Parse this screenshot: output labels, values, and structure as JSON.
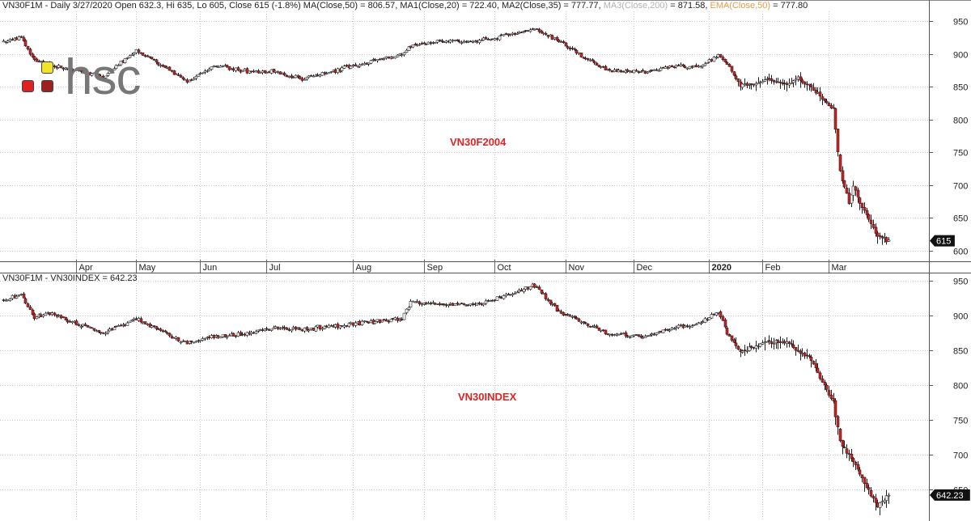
{
  "header_top": {
    "symbol": "VN30F1M",
    "info": "- Daily 3/27/2020 Open 632.3, Hi 635, Lo 605, Close 615 (-1.8%)",
    "ma": "MA(Close,50) = 806.57,",
    "ma1": "MA1(Close,20) = 722.40,",
    "ma2": "MA2(Close,35) = 777.77,",
    "ma3_label": "MA3(Close,200)",
    "ma3_value": "= 871.58,",
    "ema_label": "EMA(Close,50)",
    "ema_value": "= 777.80"
  },
  "header_bottom": {
    "text": "VN30F1M - VN30INDEX = 642.23"
  },
  "logo": {
    "text": "hsc"
  },
  "labels": {
    "top": "VN30F2004",
    "bottom": "VN30INDEX"
  },
  "colors": {
    "up": "#ffffff",
    "down": "#d02020",
    "wick": "#222222",
    "grid": "#c8c8c8",
    "label": "#e02424"
  },
  "chart_data": [
    {
      "type": "candlestick",
      "name": "VN30F2004",
      "x_tick_labels": [
        "Apr",
        "May",
        "Jun",
        "Jul",
        "Aug",
        "Sep",
        "Oct",
        "Nov",
        "Dec",
        "2020",
        "Feb",
        "Mar"
      ],
      "y_ticks": [
        950,
        900,
        850,
        800,
        750,
        700,
        650,
        600
      ],
      "ylim": [
        585,
        965
      ],
      "last_value": "615",
      "anchors_close": [
        [
          0,
          918
        ],
        [
          8,
          925
        ],
        [
          14,
          890
        ],
        [
          20,
          885
        ],
        [
          45,
          865
        ],
        [
          60,
          905
        ],
        [
          75,
          875
        ],
        [
          83,
          858
        ],
        [
          96,
          882
        ],
        [
          112,
          872
        ],
        [
          122,
          873
        ],
        [
          135,
          862
        ],
        [
          165,
          888
        ],
        [
          180,
          900
        ],
        [
          184,
          913
        ],
        [
          200,
          920
        ],
        [
          215,
          920
        ],
        [
          240,
          938
        ],
        [
          251,
          920
        ],
        [
          262,
          895
        ],
        [
          273,
          875
        ],
        [
          290,
          872
        ],
        [
          305,
          882
        ],
        [
          315,
          880
        ],
        [
          323,
          898
        ],
        [
          328,
          880
        ],
        [
          333,
          850
        ],
        [
          345,
          860
        ],
        [
          355,
          855
        ],
        [
          359,
          862
        ],
        [
          364,
          852
        ],
        [
          375,
          815
        ],
        [
          378,
          722
        ],
        [
          382,
          672
        ],
        [
          384,
          698
        ],
        [
          387,
          672
        ],
        [
          390,
          655
        ],
        [
          395,
          622
        ],
        [
          400,
          615
        ]
      ]
    },
    {
      "type": "candlestick",
      "name": "VN30INDEX",
      "y_ticks": [
        950,
        900,
        850,
        800,
        750,
        700,
        650
      ],
      "ylim": [
        605,
        960
      ],
      "last_value": "642.23",
      "anchors_close": [
        [
          0,
          922
        ],
        [
          8,
          930
        ],
        [
          14,
          895
        ],
        [
          20,
          903
        ],
        [
          45,
          875
        ],
        [
          60,
          895
        ],
        [
          75,
          872
        ],
        [
          83,
          860
        ],
        [
          96,
          870
        ],
        [
          112,
          875
        ],
        [
          122,
          882
        ],
        [
          135,
          880
        ],
        [
          165,
          890
        ],
        [
          180,
          895
        ],
        [
          184,
          920
        ],
        [
          200,
          915
        ],
        [
          215,
          915
        ],
        [
          240,
          943
        ],
        [
          251,
          905
        ],
        [
          262,
          890
        ],
        [
          273,
          873
        ],
        [
          290,
          870
        ],
        [
          305,
          883
        ],
        [
          315,
          888
        ],
        [
          323,
          905
        ],
        [
          328,
          868
        ],
        [
          333,
          848
        ],
        [
          345,
          862
        ],
        [
          355,
          860
        ],
        [
          359,
          848
        ],
        [
          364,
          840
        ],
        [
          375,
          775
        ],
        [
          378,
          718
        ],
        [
          382,
          700
        ],
        [
          384,
          690
        ],
        [
          387,
          672
        ],
        [
          390,
          652
        ],
        [
          395,
          628
        ],
        [
          400,
          642
        ]
      ]
    }
  ]
}
